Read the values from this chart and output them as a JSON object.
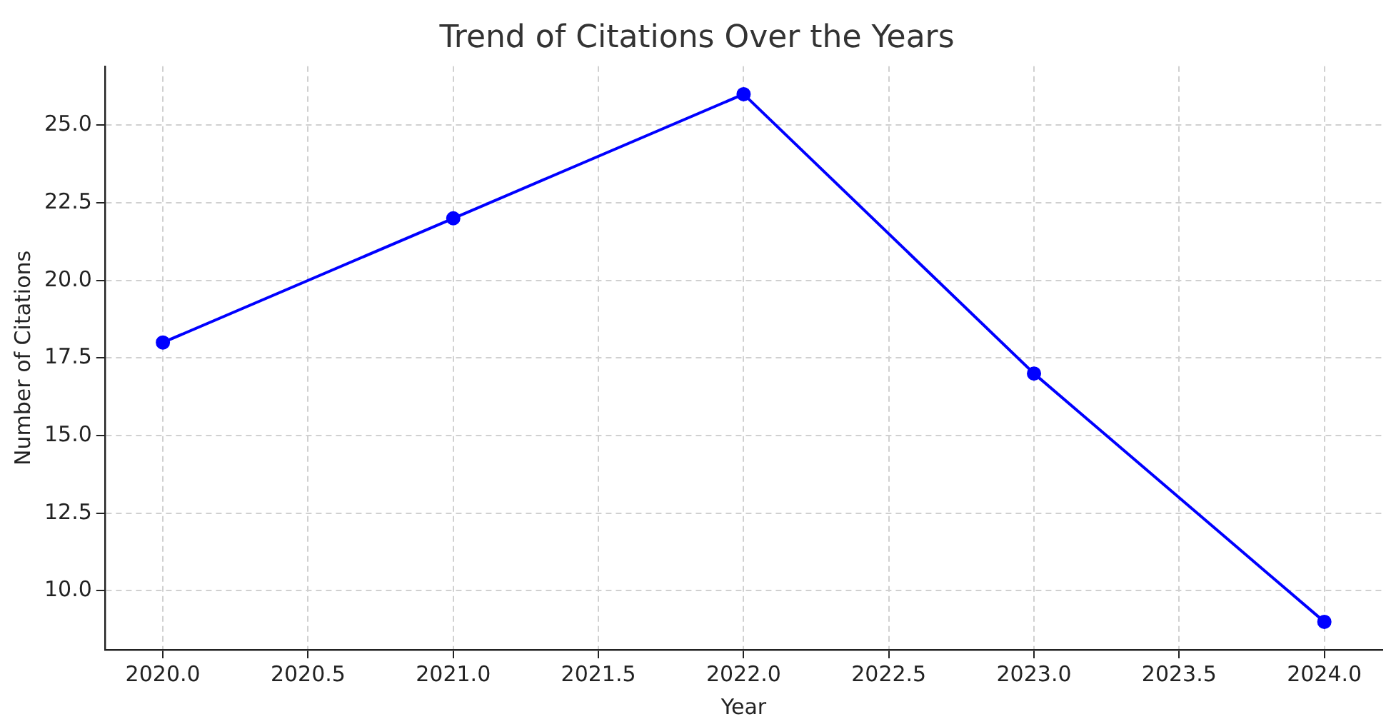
{
  "chart_data": {
    "type": "line",
    "title": "Trend of Citations Over the Years",
    "xlabel": "Year",
    "ylabel": "Number of Citations",
    "x": [
      2020,
      2021,
      2022,
      2023,
      2024
    ],
    "series": [
      {
        "color": "#0000ff",
        "values": [
          18,
          22,
          26,
          17,
          9
        ]
      }
    ],
    "xlim": [
      2019.8,
      2024.2
    ],
    "xticks": [
      {
        "value": 2020,
        "label": "2020.0"
      },
      {
        "value": 2020.5,
        "label": "2020.5"
      },
      {
        "value": 2021,
        "label": "2021.0"
      },
      {
        "value": 2021.5,
        "label": "2021.5"
      },
      {
        "value": 2022,
        "label": "2022.0"
      },
      {
        "value": 2022.5,
        "label": "2022.5"
      },
      {
        "value": 2023,
        "label": "2023.0"
      },
      {
        "value": 2023.5,
        "label": "2023.5"
      },
      {
        "value": 2024,
        "label": "2024.0"
      }
    ],
    "ylim": [
      8.1,
      26.9
    ],
    "yticks": [
      {
        "value": 10,
        "label": "10.0"
      },
      {
        "value": 12.5,
        "label": "12.5"
      },
      {
        "value": 15,
        "label": "15.0"
      },
      {
        "value": 17.5,
        "label": "17.5"
      },
      {
        "value": 20,
        "label": "20.0"
      },
      {
        "value": 22.5,
        "label": "22.5"
      },
      {
        "value": 25,
        "label": "25.0"
      }
    ],
    "grid": true,
    "legend": false,
    "marker": "circle",
    "line_style": "solid"
  }
}
